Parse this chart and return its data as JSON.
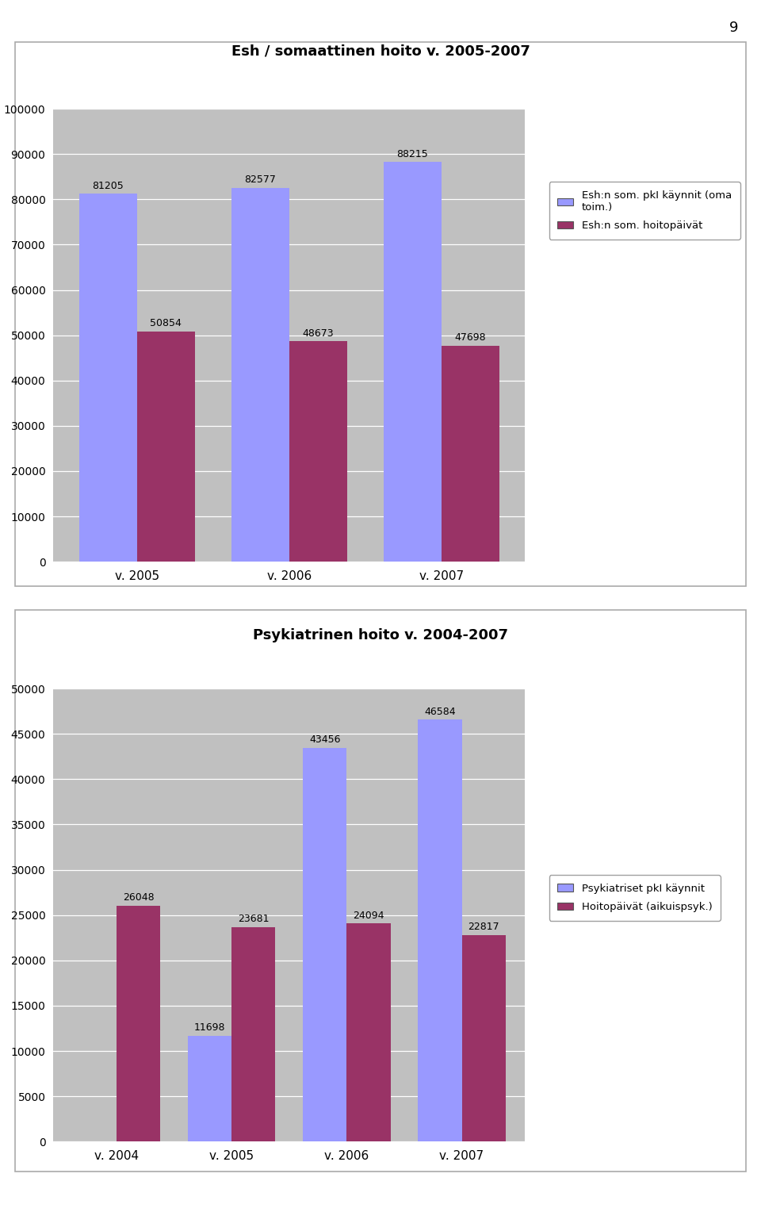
{
  "chart1": {
    "title": "Esh / somaattinen hoito v. 2005-2007",
    "years": [
      "v. 2005",
      "v. 2006",
      "v. 2007"
    ],
    "series1_values": [
      81205,
      82577,
      88215
    ],
    "series2_values": [
      50854,
      48673,
      47698
    ],
    "series1_label": "Esh:n som. pkI käynnit (oma\ntoim.)",
    "series2_label": "Esh:n som. hoitopäivät",
    "ylim": [
      0,
      100000
    ],
    "yticks": [
      0,
      10000,
      20000,
      30000,
      40000,
      50000,
      60000,
      70000,
      80000,
      90000,
      100000
    ],
    "bar_color1": "#9999ff",
    "bar_color2": "#993366",
    "plot_bg": "#c0c0c0"
  },
  "chart2": {
    "title": "Psykiatrinen hoito v. 2004-2007",
    "years": [
      "v. 2004",
      "v. 2005",
      "v. 2006",
      "v. 2007"
    ],
    "series1_values": [
      0,
      11698,
      43456,
      46584
    ],
    "series2_values": [
      26048,
      23681,
      24094,
      22817
    ],
    "series1_label": "Psykiatriset pkI käynnit",
    "series2_label": "Hoitopäivät (aikuispsyk.)",
    "ylim": [
      0,
      50000
    ],
    "yticks": [
      0,
      5000,
      10000,
      15000,
      20000,
      25000,
      30000,
      35000,
      40000,
      45000,
      50000
    ],
    "bar_color1": "#9999ff",
    "bar_color2": "#993366",
    "plot_bg": "#c0c0c0"
  },
  "page_number": "9",
  "outer_bg": "#ffffff",
  "box_bg": "#ffffff",
  "border_color": "#aaaaaa"
}
